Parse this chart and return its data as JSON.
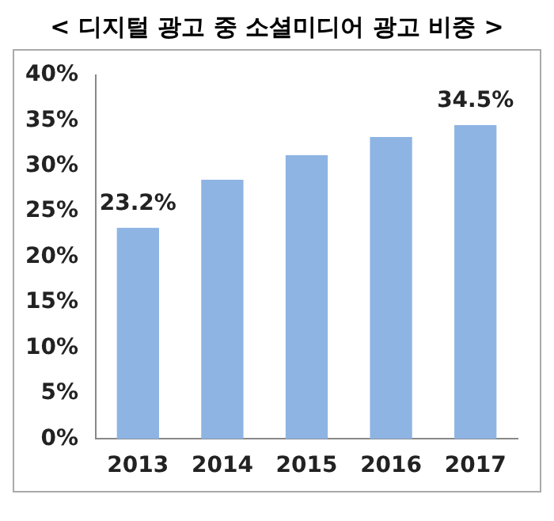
{
  "chart_data": {
    "type": "bar",
    "title": "< 디지털 광고 중 소셜미디어 광고 비중 >",
    "categories": [
      "2013",
      "2014",
      "2015",
      "2016",
      "2017"
    ],
    "values": [
      23.2,
      28.5,
      31.2,
      33.2,
      34.5
    ],
    "value_labels": [
      "23.2%",
      null,
      null,
      null,
      "34.5%"
    ],
    "color": "#8eb4e3",
    "ylim": [
      0,
      40
    ],
    "yticks": [
      {
        "value": 0,
        "label": "0%"
      },
      {
        "value": 5,
        "label": "5%"
      },
      {
        "value": 10,
        "label": "10%"
      },
      {
        "value": 15,
        "label": "15%"
      },
      {
        "value": 20,
        "label": "20%"
      },
      {
        "value": 25,
        "label": "25%"
      },
      {
        "value": 30,
        "label": "30%"
      },
      {
        "value": 35,
        "label": "35%"
      },
      {
        "value": 40,
        "label": "40%"
      }
    ],
    "grid": false,
    "legend": false
  }
}
